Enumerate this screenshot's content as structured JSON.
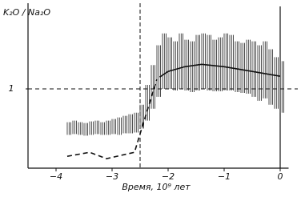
{
  "chart_data": {
    "type": "range-line",
    "y_label": "K₂O / Na₂O",
    "x_label": "Время, 10⁹ лет",
    "xlim": [
      -4.5,
      0.15
    ],
    "ylim": [
      0,
      2
    ],
    "xticks": [
      {
        "value": -4,
        "label": "−4"
      },
      {
        "value": -3,
        "label": "−3"
      },
      {
        "value": -2,
        "label": "−2"
      },
      {
        "value": -1,
        "label": "−1"
      },
      0
    ],
    "yticks": [
      1
    ],
    "reference_lines": {
      "x": -2.5,
      "y": 1
    },
    "range": {
      "color": "#222",
      "x": [
        -3.8,
        -3.7,
        -3.6,
        -3.5,
        -3.4,
        -3.3,
        -3.2,
        -3.1,
        -3.0,
        -2.9,
        -2.8,
        -2.7,
        -2.6,
        -2.5,
        -2.4,
        -2.3,
        -2.2,
        -2.1,
        -2.0,
        -1.9,
        -1.8,
        -1.7,
        -1.6,
        -1.5,
        -1.4,
        -1.3,
        -1.2,
        -1.1,
        -1.0,
        -0.9,
        -0.8,
        -0.7,
        -0.6,
        -0.5,
        -0.4,
        -0.3,
        -0.2,
        -0.1,
        0
      ],
      "low": [
        0.42,
        0.43,
        0.42,
        0.41,
        0.42,
        0.43,
        0.42,
        0.42,
        0.43,
        0.42,
        0.44,
        0.44,
        0.45,
        0.5,
        0.6,
        0.75,
        0.9,
        1.0,
        1.0,
        0.98,
        1.0,
        0.98,
        0.96,
        0.98,
        1.0,
        0.98,
        0.97,
        0.97,
        0.98,
        0.98,
        0.96,
        0.95,
        0.94,
        0.9,
        0.85,
        0.88,
        0.8,
        0.75,
        0.7
      ],
      "high": [
        0.58,
        0.6,
        0.58,
        0.57,
        0.59,
        0.6,
        0.58,
        0.6,
        0.62,
        0.64,
        0.66,
        0.68,
        0.7,
        0.8,
        1.05,
        1.3,
        1.55,
        1.7,
        1.65,
        1.6,
        1.7,
        1.62,
        1.6,
        1.68,
        1.7,
        1.68,
        1.62,
        1.65,
        1.7,
        1.68,
        1.6,
        1.58,
        1.62,
        1.6,
        1.55,
        1.6,
        1.5,
        1.4,
        1.35
      ]
    },
    "series": [
      {
        "style": "solid",
        "color": "#111",
        "x": [
          -2.15,
          -2.0,
          -1.7,
          -1.4,
          -1.0,
          -0.5,
          0
        ],
        "values": [
          1.15,
          1.22,
          1.28,
          1.31,
          1.28,
          1.22,
          1.16
        ]
      },
      {
        "style": "dashed",
        "color": "#111",
        "x": [
          -3.8,
          -3.4,
          -3.1,
          -2.6,
          -2.45,
          -2.2
        ],
        "values": [
          0.15,
          0.2,
          0.12,
          0.2,
          0.55,
          1.12
        ]
      }
    ]
  }
}
